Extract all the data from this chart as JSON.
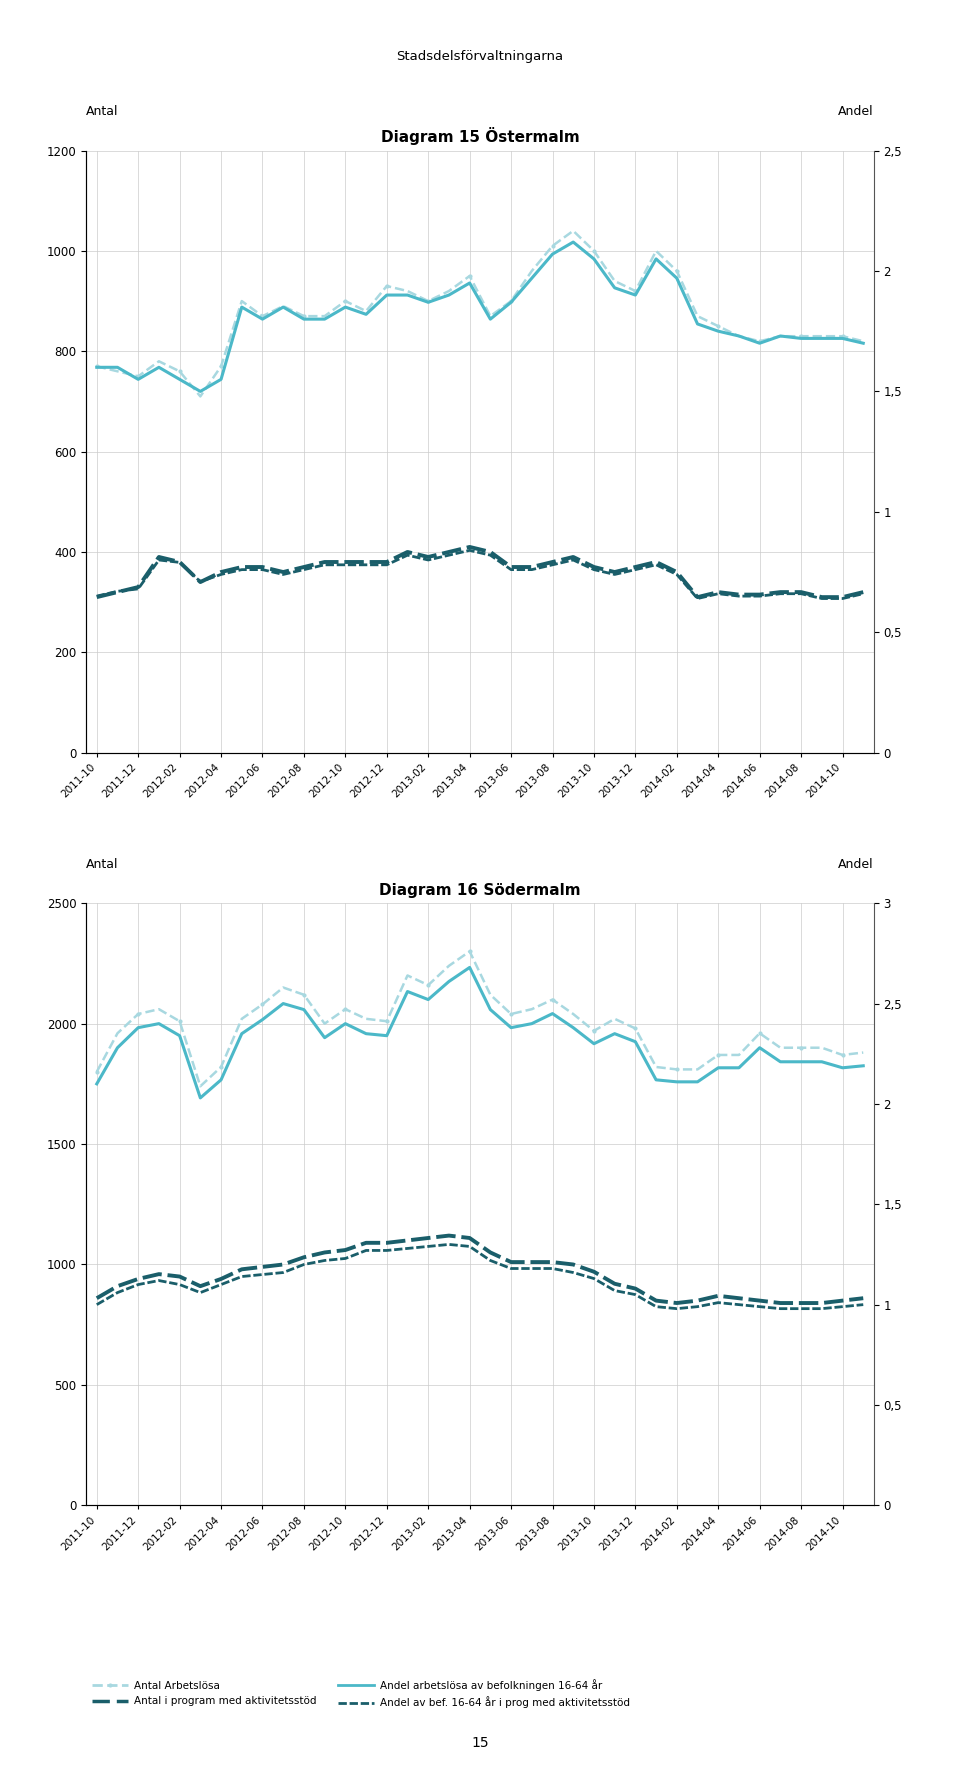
{
  "page_title": "Stadsdelsförvaltningarna",
  "page_number": "15",
  "charts": [
    {
      "title": "Diagram 15 Östermalm",
      "left_label": "Antal",
      "right_label": "Andel",
      "ylim_left": [
        0,
        1200
      ],
      "ylim_right": [
        0,
        2.5
      ],
      "yticks_left": [
        0,
        200,
        400,
        600,
        800,
        1000,
        1200
      ],
      "yticks_right": [
        0,
        0.5,
        1,
        1.5,
        2,
        2.5
      ],
      "ytick_right_labels": [
        "0",
        "0,5",
        "1",
        "1,5",
        "2",
        "2,5"
      ],
      "antal_arbetslosa": [
        770,
        760,
        750,
        780,
        760,
        710,
        770,
        900,
        870,
        890,
        870,
        870,
        900,
        880,
        930,
        920,
        900,
        920,
        950,
        870,
        900,
        960,
        1010,
        1040,
        1000,
        940,
        920,
        1000,
        960,
        870,
        850,
        830,
        820,
        830,
        830,
        830,
        830,
        820
      ],
      "andel_arbetslosa": [
        1.6,
        1.6,
        1.55,
        1.6,
        1.55,
        1.5,
        1.55,
        1.85,
        1.8,
        1.85,
        1.8,
        1.8,
        1.85,
        1.82,
        1.9,
        1.9,
        1.87,
        1.9,
        1.95,
        1.8,
        1.87,
        1.97,
        2.07,
        2.12,
        2.05,
        1.93,
        1.9,
        2.05,
        1.97,
        1.78,
        1.75,
        1.73,
        1.7,
        1.73,
        1.72,
        1.72,
        1.72,
        1.7
      ],
      "antal_program": [
        310,
        320,
        330,
        390,
        380,
        340,
        360,
        370,
        370,
        360,
        370,
        380,
        380,
        380,
        380,
        400,
        390,
        400,
        410,
        400,
        370,
        370,
        380,
        390,
        370,
        360,
        370,
        380,
        360,
        310,
        320,
        315,
        315,
        320,
        320,
        310,
        310,
        320
      ],
      "andel_program": [
        0.65,
        0.67,
        0.68,
        0.8,
        0.79,
        0.71,
        0.74,
        0.76,
        0.76,
        0.74,
        0.76,
        0.78,
        0.78,
        0.78,
        0.78,
        0.82,
        0.8,
        0.82,
        0.84,
        0.82,
        0.76,
        0.76,
        0.78,
        0.8,
        0.76,
        0.74,
        0.76,
        0.78,
        0.74,
        0.64,
        0.66,
        0.65,
        0.65,
        0.66,
        0.66,
        0.64,
        0.64,
        0.66
      ]
    },
    {
      "title": "Diagram 16 Södermalm",
      "left_label": "Antal",
      "right_label": "Andel",
      "ylim_left": [
        0,
        2500
      ],
      "ylim_right": [
        0,
        3
      ],
      "yticks_left": [
        0,
        500,
        1000,
        1500,
        2000,
        2500
      ],
      "yticks_right": [
        0,
        0.5,
        1,
        1.5,
        2,
        2.5,
        3
      ],
      "ytick_right_labels": [
        "0",
        "0,5",
        "1",
        "1,5",
        "2",
        "2,5",
        "3"
      ],
      "antal_arbetslosa": [
        1800,
        1960,
        2040,
        2060,
        2010,
        1740,
        1820,
        2020,
        2080,
        2150,
        2120,
        2000,
        2060,
        2020,
        2010,
        2200,
        2160,
        2240,
        2300,
        2120,
        2040,
        2060,
        2100,
        2040,
        1970,
        2020,
        1980,
        1820,
        1810,
        1810,
        1870,
        1870,
        1960,
        1900,
        1900,
        1900,
        1870,
        1880
      ],
      "andel_arbetslosa": [
        2.1,
        2.28,
        2.38,
        2.4,
        2.34,
        2.03,
        2.12,
        2.35,
        2.42,
        2.5,
        2.47,
        2.33,
        2.4,
        2.35,
        2.34,
        2.56,
        2.52,
        2.61,
        2.68,
        2.47,
        2.38,
        2.4,
        2.45,
        2.38,
        2.3,
        2.35,
        2.31,
        2.12,
        2.11,
        2.11,
        2.18,
        2.18,
        2.28,
        2.21,
        2.21,
        2.21,
        2.18,
        2.19
      ],
      "antal_program": [
        860,
        910,
        940,
        960,
        950,
        910,
        940,
        980,
        990,
        1000,
        1030,
        1050,
        1060,
        1090,
        1090,
        1100,
        1110,
        1120,
        1110,
        1050,
        1010,
        1010,
        1010,
        1000,
        970,
        920,
        900,
        850,
        840,
        850,
        870,
        860,
        850,
        840,
        840,
        840,
        850,
        860
      ],
      "andel_program": [
        1.0,
        1.06,
        1.1,
        1.12,
        1.1,
        1.06,
        1.1,
        1.14,
        1.15,
        1.16,
        1.2,
        1.22,
        1.23,
        1.27,
        1.27,
        1.28,
        1.29,
        1.3,
        1.29,
        1.22,
        1.18,
        1.18,
        1.18,
        1.16,
        1.13,
        1.07,
        1.05,
        0.99,
        0.98,
        0.99,
        1.01,
        1.0,
        0.99,
        0.98,
        0.98,
        0.98,
        0.99,
        1.0
      ]
    }
  ],
  "x_labels": [
    "2011-10",
    "2011-12",
    "2012-02",
    "2012-04",
    "2012-06",
    "2012-08",
    "2012-10",
    "2012-12",
    "2013-02",
    "2013-04",
    "2013-06",
    "2013-08",
    "2013-10",
    "2013-12",
    "2014-02",
    "2014-04",
    "2014-06",
    "2014-08",
    "2014-10"
  ],
  "color_antal_arbetslosa": "#A8D8E0",
  "color_andel_arbetslosa": "#4BB8C8",
  "color_antal_program": "#1A5E6A",
  "color_andel_program": "#1A5E6A",
  "legend_entries": [
    "Antal Arbetslösa",
    "Antal i program med aktivitetsstöd",
    "Andel arbetslösa av befolkningen 16-64 år",
    "Andel av bef. 16-64 år i prog med aktivitetsstöd"
  ]
}
